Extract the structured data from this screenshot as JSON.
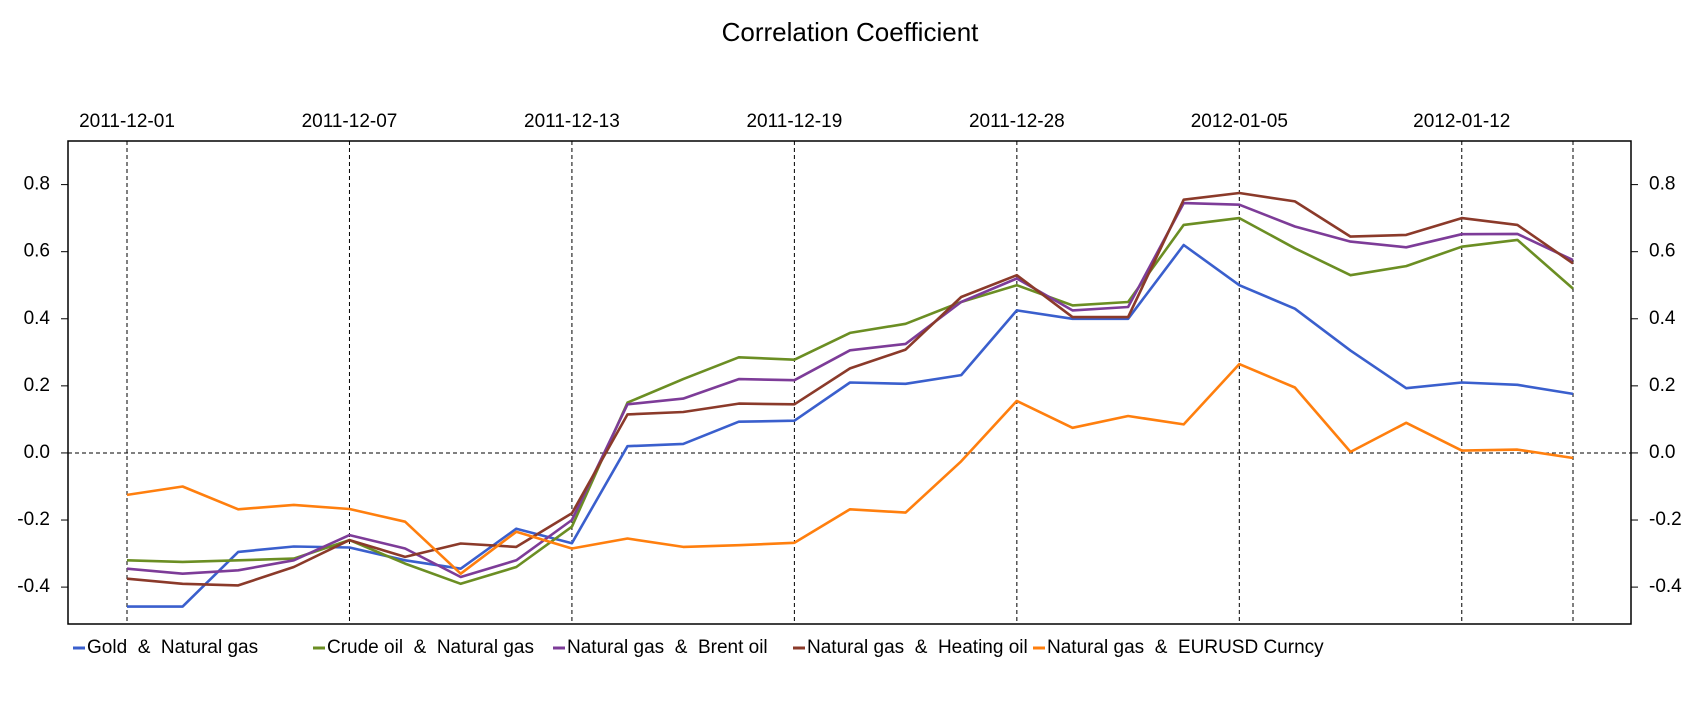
{
  "chart_data": {
    "type": "line",
    "title": "Correlation Coefficient",
    "categories": [
      "2011-12-01",
      null,
      null,
      null,
      "2011-12-07",
      null,
      null,
      null,
      "2011-12-13",
      null,
      null,
      null,
      "2011-12-19",
      null,
      null,
      null,
      "2011-12-28",
      null,
      null,
      null,
      "2012-01-05",
      null,
      null,
      null,
      "2012-01-12",
      null,
      null
    ],
    "series": [
      {
        "name": "Gold  &  Natural gas",
        "color": "#3a5fcd",
        "values": [
          -0.458,
          -0.458,
          -0.295,
          -0.279,
          -0.282,
          -0.32,
          -0.345,
          -0.226,
          -0.269,
          0.02,
          0.027,
          0.093,
          0.096,
          0.21,
          0.206,
          0.232,
          0.425,
          0.4,
          0.4,
          0.62,
          0.5,
          0.43,
          0.305,
          0.193,
          0.21,
          0.203,
          0.176
        ]
      },
      {
        "name": "Crude oil  &  Natural gas",
        "color": "#6b8e23",
        "values": [
          -0.32,
          -0.325,
          -0.32,
          -0.315,
          -0.26,
          -0.33,
          -0.39,
          -0.34,
          -0.22,
          0.15,
          0.22,
          0.285,
          0.278,
          0.358,
          0.385,
          0.45,
          0.5,
          0.44,
          0.45,
          0.68,
          0.7,
          0.61,
          0.53,
          0.557,
          0.615,
          0.635,
          0.49
        ]
      },
      {
        "name": "Natural gas  &  Brent oil",
        "color": "#7d3c98",
        "values": [
          -0.345,
          -0.36,
          -0.35,
          -0.32,
          -0.245,
          -0.285,
          -0.37,
          -0.32,
          -0.2,
          0.145,
          0.162,
          0.22,
          0.217,
          0.306,
          0.325,
          0.45,
          0.52,
          0.425,
          0.435,
          0.745,
          0.74,
          0.675,
          0.63,
          0.613,
          0.652,
          0.653,
          0.575
        ]
      },
      {
        "name": "Natural gas  &  Heating oil",
        "color": "#8b3a2a",
        "values": [
          -0.375,
          -0.39,
          -0.395,
          -0.34,
          -0.26,
          -0.31,
          -0.27,
          -0.28,
          -0.18,
          0.115,
          0.122,
          0.147,
          0.145,
          0.252,
          0.308,
          0.465,
          0.53,
          0.405,
          0.405,
          0.755,
          0.775,
          0.75,
          0.645,
          0.65,
          0.7,
          0.68,
          0.565
        ]
      },
      {
        "name": "Natural gas  &  EURUSD Curncy",
        "color": "#ff7f0e",
        "values": [
          -0.125,
          -0.1,
          -0.168,
          -0.155,
          -0.167,
          -0.205,
          -0.36,
          -0.235,
          -0.285,
          -0.255,
          -0.28,
          -0.275,
          -0.268,
          -0.168,
          -0.178,
          -0.025,
          0.155,
          0.075,
          0.11,
          0.085,
          0.265,
          0.195,
          0.003,
          0.09,
          0.007,
          0.01,
          -0.015
        ]
      }
    ],
    "ylim": [
      -0.51,
      0.93
    ],
    "yticks": [
      -0.4,
      -0.2,
      {
        "value": 0,
        "label": "0.0"
      },
      0.2,
      0.4,
      0.6,
      0.8
    ],
    "grid": true
  }
}
